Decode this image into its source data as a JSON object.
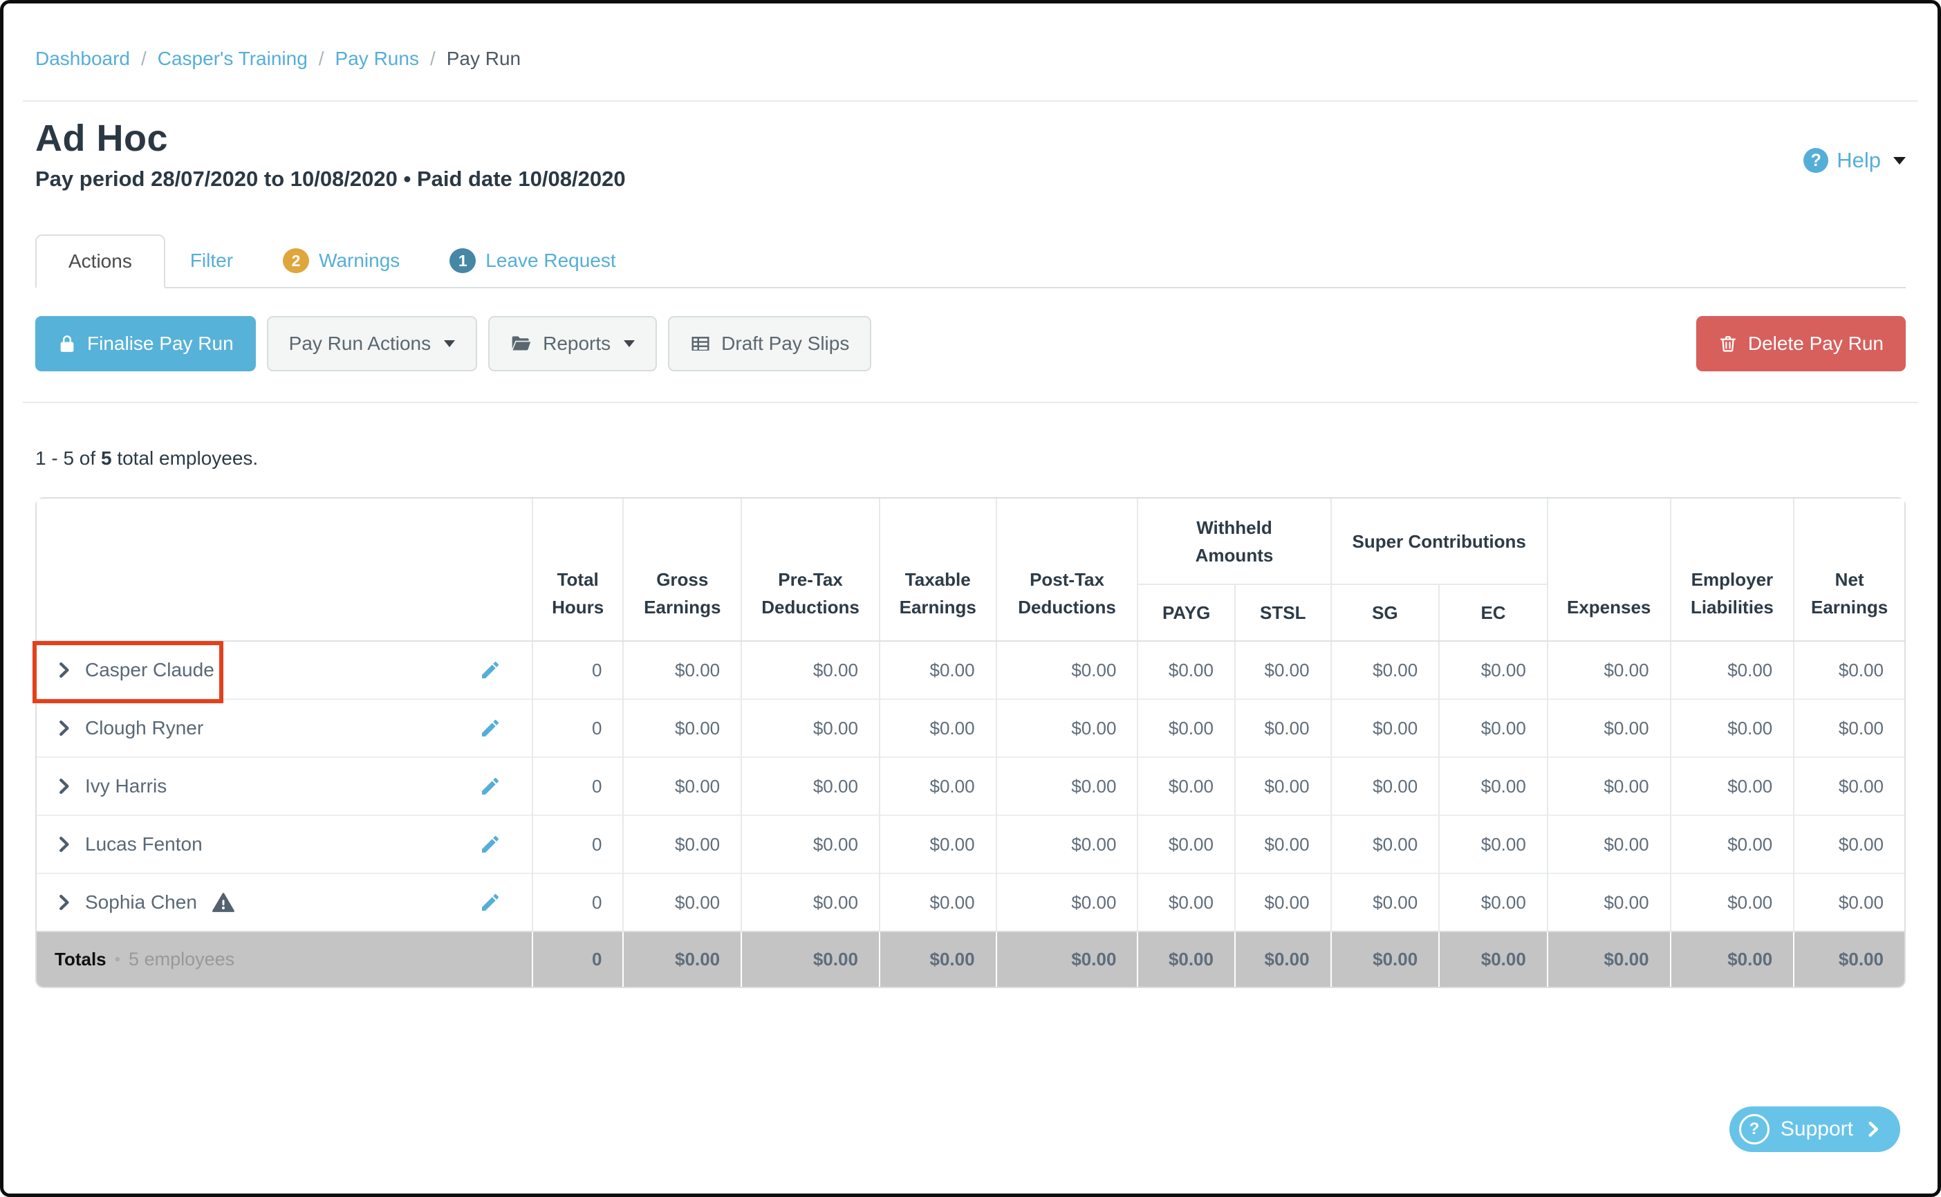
{
  "breadcrumb": {
    "separator": "/",
    "items": [
      {
        "label": "Dashboard",
        "link": true
      },
      {
        "label": "Casper's Training",
        "link": true
      },
      {
        "label": "Pay Runs",
        "link": true
      },
      {
        "label": "Pay Run",
        "link": false
      }
    ]
  },
  "page": {
    "title": "Ad Hoc",
    "subtitle": "Pay period 28/07/2020 to 10/08/2020 • Paid date 10/08/2020",
    "help_label": "Help",
    "summary_range": "1 - 5 of",
    "summary_total": "5",
    "summary_suffix": "total employees."
  },
  "tabs": [
    {
      "label": "Actions",
      "active": true
    },
    {
      "label": "Filter",
      "active": false
    },
    {
      "label": "Warnings",
      "active": false,
      "badge": "2",
      "badge_color": "#dfa63d"
    },
    {
      "label": "Leave Request",
      "active": false,
      "badge": "1",
      "badge_color": "#4587a5"
    }
  ],
  "toolbar": {
    "finalise_label": "Finalise Pay Run",
    "pay_run_actions_label": "Pay Run Actions",
    "reports_label": "Reports",
    "draft_pay_slips_label": "Draft Pay Slips",
    "delete_label": "Delete Pay Run"
  },
  "table": {
    "columns": [
      "Total Hours",
      "Gross Earnings",
      "Pre-Tax Deductions",
      "Taxable Earnings",
      "Post-Tax Deductions",
      "PAYG",
      "STSL",
      "SG",
      "EC",
      "Expenses",
      "Employer Liabilities",
      "Net Earnings"
    ],
    "group_headers": [
      {
        "label": "Withheld\nAmounts"
      },
      {
        "label": "Super Contributions"
      }
    ],
    "rows": [
      {
        "name": "Casper Claude",
        "highlighted": true,
        "warning": false,
        "values": [
          "0",
          "$0.00",
          "$0.00",
          "$0.00",
          "$0.00",
          "$0.00",
          "$0.00",
          "$0.00",
          "$0.00",
          "$0.00",
          "$0.00",
          "$0.00"
        ]
      },
      {
        "name": "Clough Ryner",
        "highlighted": false,
        "warning": false,
        "values": [
          "0",
          "$0.00",
          "$0.00",
          "$0.00",
          "$0.00",
          "$0.00",
          "$0.00",
          "$0.00",
          "$0.00",
          "$0.00",
          "$0.00",
          "$0.00"
        ]
      },
      {
        "name": "Ivy Harris",
        "highlighted": false,
        "warning": false,
        "values": [
          "0",
          "$0.00",
          "$0.00",
          "$0.00",
          "$0.00",
          "$0.00",
          "$0.00",
          "$0.00",
          "$0.00",
          "$0.00",
          "$0.00",
          "$0.00"
        ]
      },
      {
        "name": "Lucas Fenton",
        "highlighted": false,
        "warning": false,
        "values": [
          "0",
          "$0.00",
          "$0.00",
          "$0.00",
          "$0.00",
          "$0.00",
          "$0.00",
          "$0.00",
          "$0.00",
          "$0.00",
          "$0.00",
          "$0.00"
        ]
      },
      {
        "name": "Sophia Chen",
        "highlighted": false,
        "warning": true,
        "values": [
          "0",
          "$0.00",
          "$0.00",
          "$0.00",
          "$0.00",
          "$0.00",
          "$0.00",
          "$0.00",
          "$0.00",
          "$0.00",
          "$0.00",
          "$0.00"
        ]
      }
    ],
    "totals": {
      "label": "Totals",
      "note": "5 employees",
      "values": [
        "0",
        "$0.00",
        "$0.00",
        "$0.00",
        "$0.00",
        "$0.00",
        "$0.00",
        "$0.00",
        "$0.00",
        "$0.00",
        "$0.00",
        "$0.00"
      ]
    }
  },
  "support": {
    "label": "Support"
  },
  "colors": {
    "link_blue": "#55aed8",
    "primary_button": "#57b2d9",
    "danger_button": "#d7605d",
    "warning_badge": "#dfa63d",
    "info_badge": "#4587a5",
    "annotation_red": "#e2411c",
    "totals_bg": "#c4c4c5"
  }
}
